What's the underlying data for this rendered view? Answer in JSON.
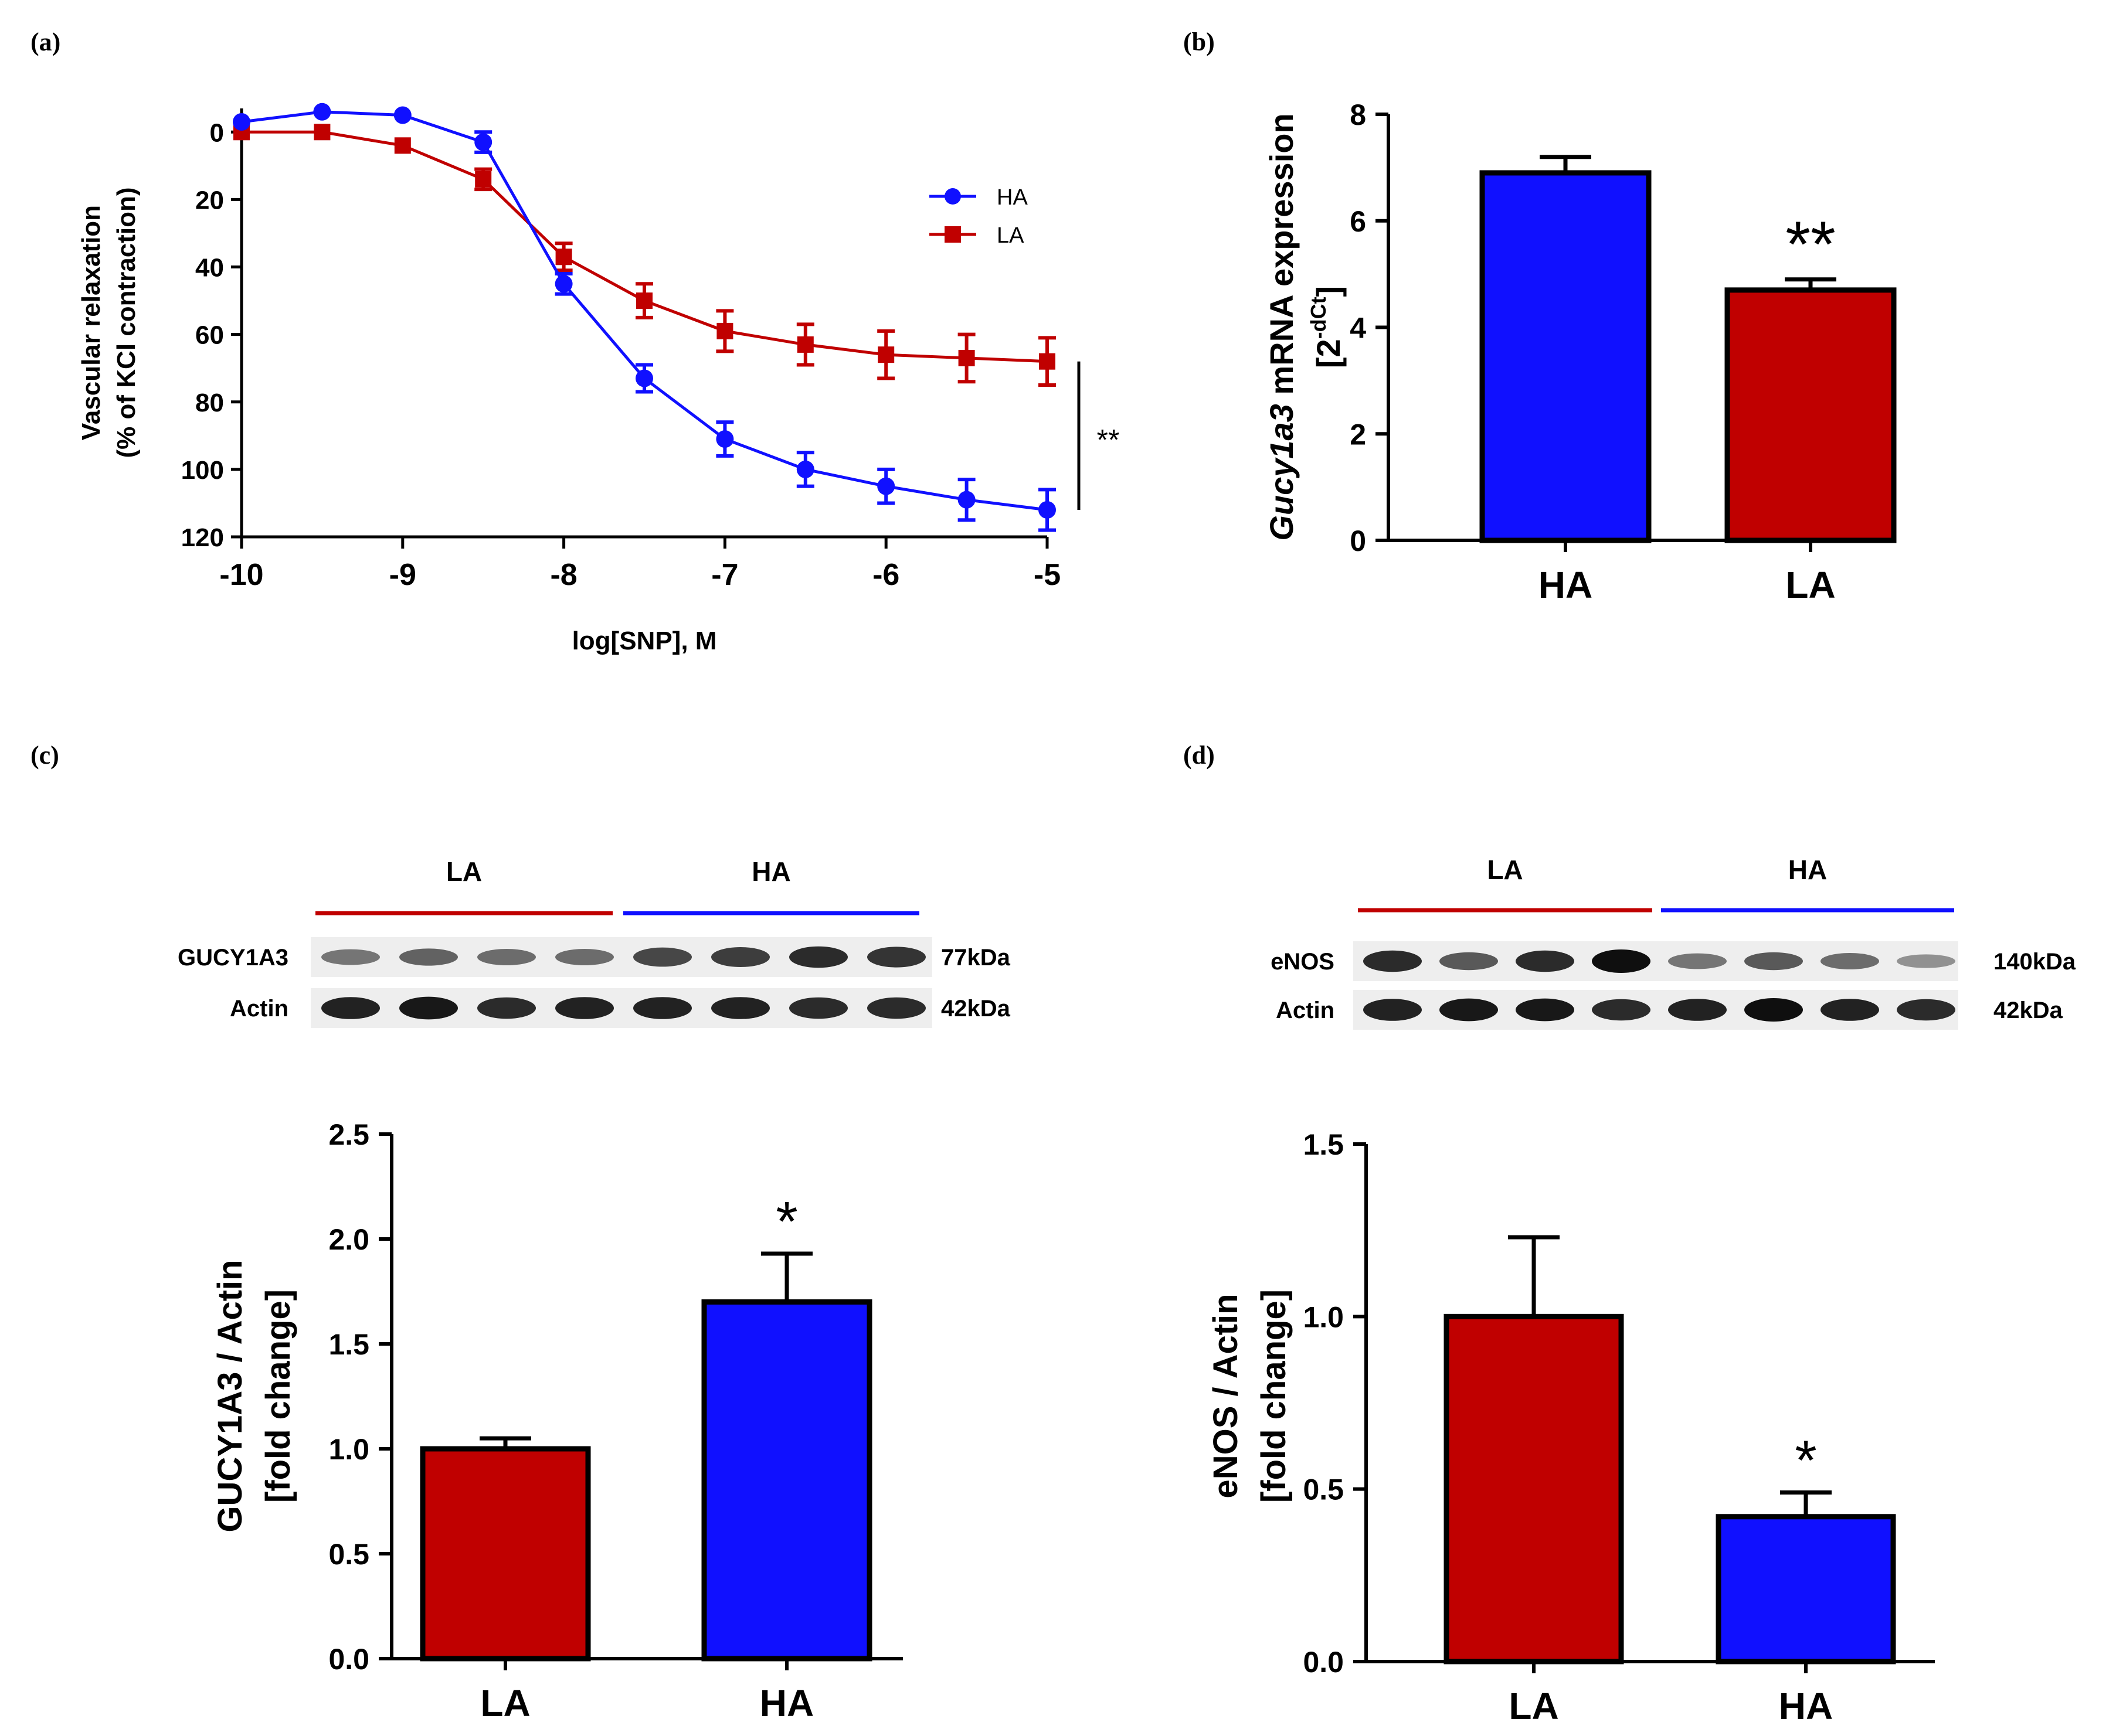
{
  "colors": {
    "HA": "#1010ff",
    "LA": "#c00000",
    "axis": "#000000"
  },
  "panel_labels": {
    "a": "(a)",
    "b": "(b)",
    "c": "(c)",
    "d": "(d)"
  },
  "chart_data": [
    {
      "id": "a",
      "type": "line",
      "title": "",
      "xlabel": "log[SNP], M",
      "ylabel_lines": [
        "Vascular relaxation",
        "(% of KCl contraction)"
      ],
      "x_ticks": [
        -10,
        -9,
        -8,
        -7,
        -6,
        -5
      ],
      "y_ticks": [
        0,
        20,
        40,
        60,
        80,
        100,
        120
      ],
      "xlim": [
        -10,
        -5
      ],
      "ylim": [
        120,
        -7
      ],
      "y_inverted": true,
      "x": [
        -10,
        -9.5,
        -9,
        -8.5,
        -8,
        -7.5,
        -7,
        -6.5,
        -6,
        -5.5,
        -5
      ],
      "series": [
        {
          "name": "HA",
          "marker": "circle",
          "values": [
            -3,
            -6,
            -5,
            3,
            45,
            73,
            91,
            100,
            105,
            109,
            112
          ],
          "errors": [
            0,
            0,
            0,
            3,
            3,
            4,
            5,
            5,
            5,
            6,
            6
          ]
        },
        {
          "name": "LA",
          "marker": "square",
          "values": [
            0,
            0,
            4,
            14,
            37,
            50,
            59,
            63,
            66,
            67,
            68
          ],
          "errors": [
            0,
            0,
            0,
            3,
            4,
            5,
            6,
            6,
            7,
            7,
            7
          ]
        }
      ],
      "legend": [
        "HA",
        "LA"
      ],
      "legend_position": "top-right",
      "significance": "**"
    },
    {
      "id": "b",
      "type": "bar",
      "title": "",
      "ylabel_italic": "Gucy1a3",
      "ylabel_rest": " mRNA expression",
      "ylabel_line2_base": "[2",
      "ylabel_line2_sup": "-dCt",
      "ylabel_line2_end": "]",
      "categories": [
        "HA",
        "LA"
      ],
      "values": [
        6.9,
        4.7
      ],
      "errors": [
        0.3,
        0.2
      ],
      "color_keys": [
        "HA",
        "LA"
      ],
      "annotations": [
        "",
        "**"
      ],
      "y_ticks": [
        "0",
        "2",
        "4",
        "6",
        "8"
      ],
      "ylim": [
        0,
        8
      ]
    },
    {
      "id": "c",
      "type": "bar",
      "title": "",
      "ylabel_lines": [
        "GUCY1A3 / Actin",
        "[fold change]"
      ],
      "categories": [
        "LA",
        "HA"
      ],
      "values": [
        1.0,
        1.7
      ],
      "errors": [
        0.05,
        0.23
      ],
      "color_keys": [
        "LA",
        "HA"
      ],
      "annotations": [
        "",
        "*"
      ],
      "y_ticks": [
        "0.0",
        "0.5",
        "1.0",
        "1.5",
        "2.0",
        "2.5"
      ],
      "ylim": [
        0,
        2.5
      ]
    },
    {
      "id": "d",
      "type": "bar",
      "title": "",
      "ylabel_lines": [
        "eNOS / Actin",
        "[fold change]"
      ],
      "categories": [
        "LA",
        "HA"
      ],
      "values": [
        1.0,
        0.42
      ],
      "errors": [
        0.23,
        0.07
      ],
      "color_keys": [
        "LA",
        "HA"
      ],
      "annotations": [
        "",
        "*"
      ],
      "y_ticks": [
        "0.0",
        "0.5",
        "1.0",
        "1.5"
      ],
      "ylim": [
        0,
        1.5
      ]
    }
  ],
  "blots": {
    "c": {
      "group_labels": [
        "LA",
        "HA"
      ],
      "rows": [
        {
          "label": "GUCY1A3",
          "size": "77kDa",
          "intensity": [
            0.45,
            0.55,
            0.5,
            0.5,
            0.7,
            0.75,
            0.85,
            0.8
          ]
        },
        {
          "label": "Actin",
          "size": "42kDa",
          "intensity": [
            0.9,
            0.95,
            0.85,
            0.9,
            0.9,
            0.9,
            0.85,
            0.85
          ]
        }
      ]
    },
    "d": {
      "group_labels": [
        "LA",
        "HA"
      ],
      "rows": [
        {
          "label": "eNOS",
          "size": "140kDa",
          "intensity": [
            0.85,
            0.6,
            0.85,
            1.0,
            0.45,
            0.6,
            0.5,
            0.3
          ]
        },
        {
          "label": "Actin",
          "size": "42kDa",
          "intensity": [
            0.9,
            0.95,
            0.95,
            0.85,
            0.9,
            1.0,
            0.9,
            0.85
          ]
        }
      ]
    }
  }
}
